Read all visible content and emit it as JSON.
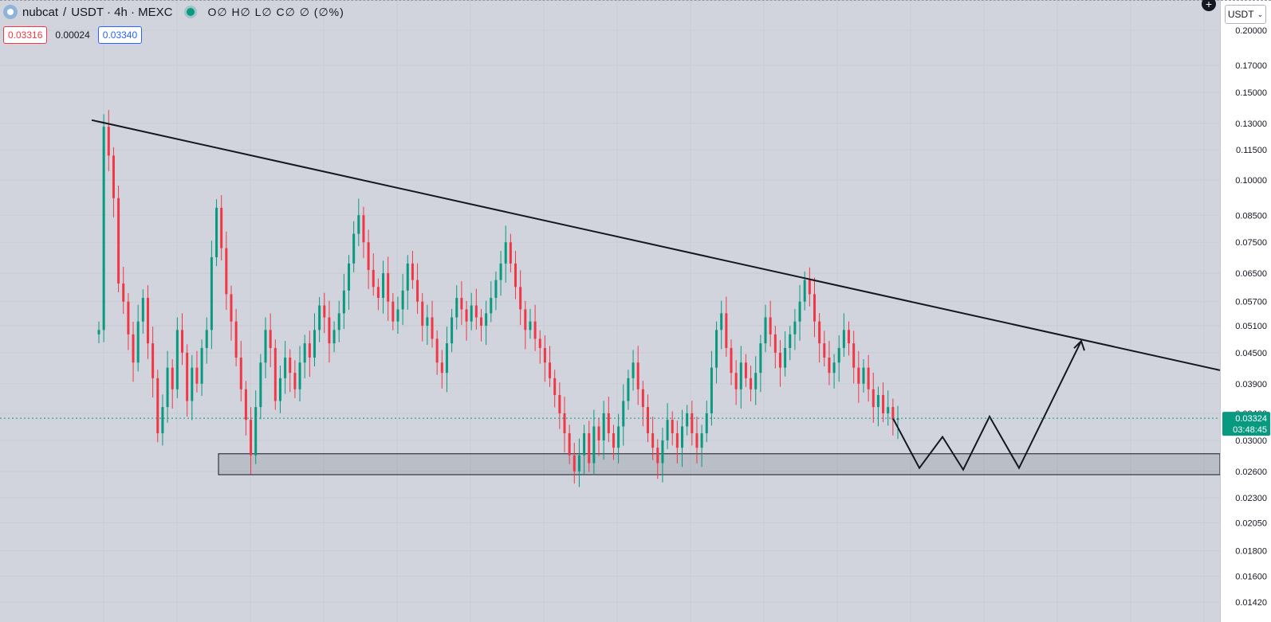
{
  "header": {
    "symbol": "nubcat",
    "separator": "/",
    "quote_info": "USDT · 4h · MEXC",
    "ohlc_text": "O∅ H∅ L∅ C∅ ∅ (∅%)",
    "bid": "0.03316",
    "spread": "0.00024",
    "ask": "0.03340"
  },
  "currency_selector": {
    "label": "USDT",
    "chevron": "chevron-down-icon"
  },
  "colors": {
    "up": "#089981",
    "down": "#f23645",
    "background": "#d1d4dc",
    "drawing": "#131722"
  },
  "chart_data": {
    "type": "candlestick",
    "scale": "log",
    "pair": "nubcat / USDT",
    "timeframe": "4h",
    "exchange": "MEXC",
    "y_axis_ticks": [
      "0.20000",
      "0.17000",
      "0.15000",
      "0.13000",
      "0.11500",
      "0.10000",
      "0.08500",
      "0.07500",
      "0.06500",
      "0.05700",
      "0.05100",
      "0.04500",
      "0.03900",
      "0.03400",
      "0.03000",
      "0.02600",
      "0.02300",
      "0.02050",
      "0.01800",
      "0.01600",
      "0.01420"
    ],
    "ylim": [
      0.0139,
      0.215
    ],
    "last_price": "0.03324",
    "countdown": "03:48:45",
    "candle_closes": [
      0.05,
      0.128,
      0.112,
      0.092,
      0.062,
      0.057,
      0.049,
      0.043,
      0.052,
      0.058,
      0.047,
      0.04,
      0.031,
      0.035,
      0.042,
      0.038,
      0.05,
      0.045,
      0.036,
      0.042,
      0.039,
      0.046,
      0.05,
      0.07,
      0.088,
      0.073,
      0.059,
      0.052,
      0.044,
      0.038,
      0.033,
      0.028,
      0.035,
      0.043,
      0.05,
      0.046,
      0.036,
      0.04,
      0.044,
      0.041,
      0.038,
      0.043,
      0.047,
      0.044,
      0.05,
      0.056,
      0.053,
      0.047,
      0.05,
      0.054,
      0.06,
      0.068,
      0.078,
      0.085,
      0.075,
      0.066,
      0.061,
      0.058,
      0.065,
      0.057,
      0.052,
      0.055,
      0.06,
      0.068,
      0.063,
      0.057,
      0.051,
      0.053,
      0.048,
      0.043,
      0.041,
      0.047,
      0.053,
      0.058,
      0.055,
      0.052,
      0.056,
      0.053,
      0.051,
      0.054,
      0.058,
      0.063,
      0.068,
      0.075,
      0.068,
      0.061,
      0.055,
      0.05,
      0.052,
      0.048,
      0.046,
      0.043,
      0.04,
      0.037,
      0.034,
      0.031,
      0.028,
      0.026,
      0.028,
      0.031,
      0.027,
      0.032,
      0.03,
      0.034,
      0.031,
      0.029,
      0.032,
      0.036,
      0.04,
      0.043,
      0.038,
      0.035,
      0.031,
      0.029,
      0.027,
      0.03,
      0.033,
      0.031,
      0.029,
      0.032,
      0.034,
      0.031,
      0.029,
      0.031,
      0.034,
      0.042,
      0.05,
      0.054,
      0.046,
      0.041,
      0.038,
      0.043,
      0.04,
      0.038,
      0.041,
      0.047,
      0.053,
      0.049,
      0.045,
      0.042,
      0.046,
      0.049,
      0.052,
      0.057,
      0.063,
      0.059,
      0.052,
      0.047,
      0.044,
      0.041,
      0.043,
      0.046,
      0.05,
      0.047,
      0.042,
      0.039,
      0.042,
      0.038,
      0.035,
      0.037,
      0.034,
      0.035,
      0.033,
      0.0332
    ],
    "trendline": {
      "from": {
        "price": 0.132
      },
      "to": {
        "price": 0.0415
      }
    },
    "support_zone": {
      "top": 0.0282,
      "bottom": 0.0256
    },
    "projection_path": [
      0.0332,
      0.0264,
      0.0305,
      0.0262,
      0.0335,
      0.0264,
      0.0475
    ]
  }
}
